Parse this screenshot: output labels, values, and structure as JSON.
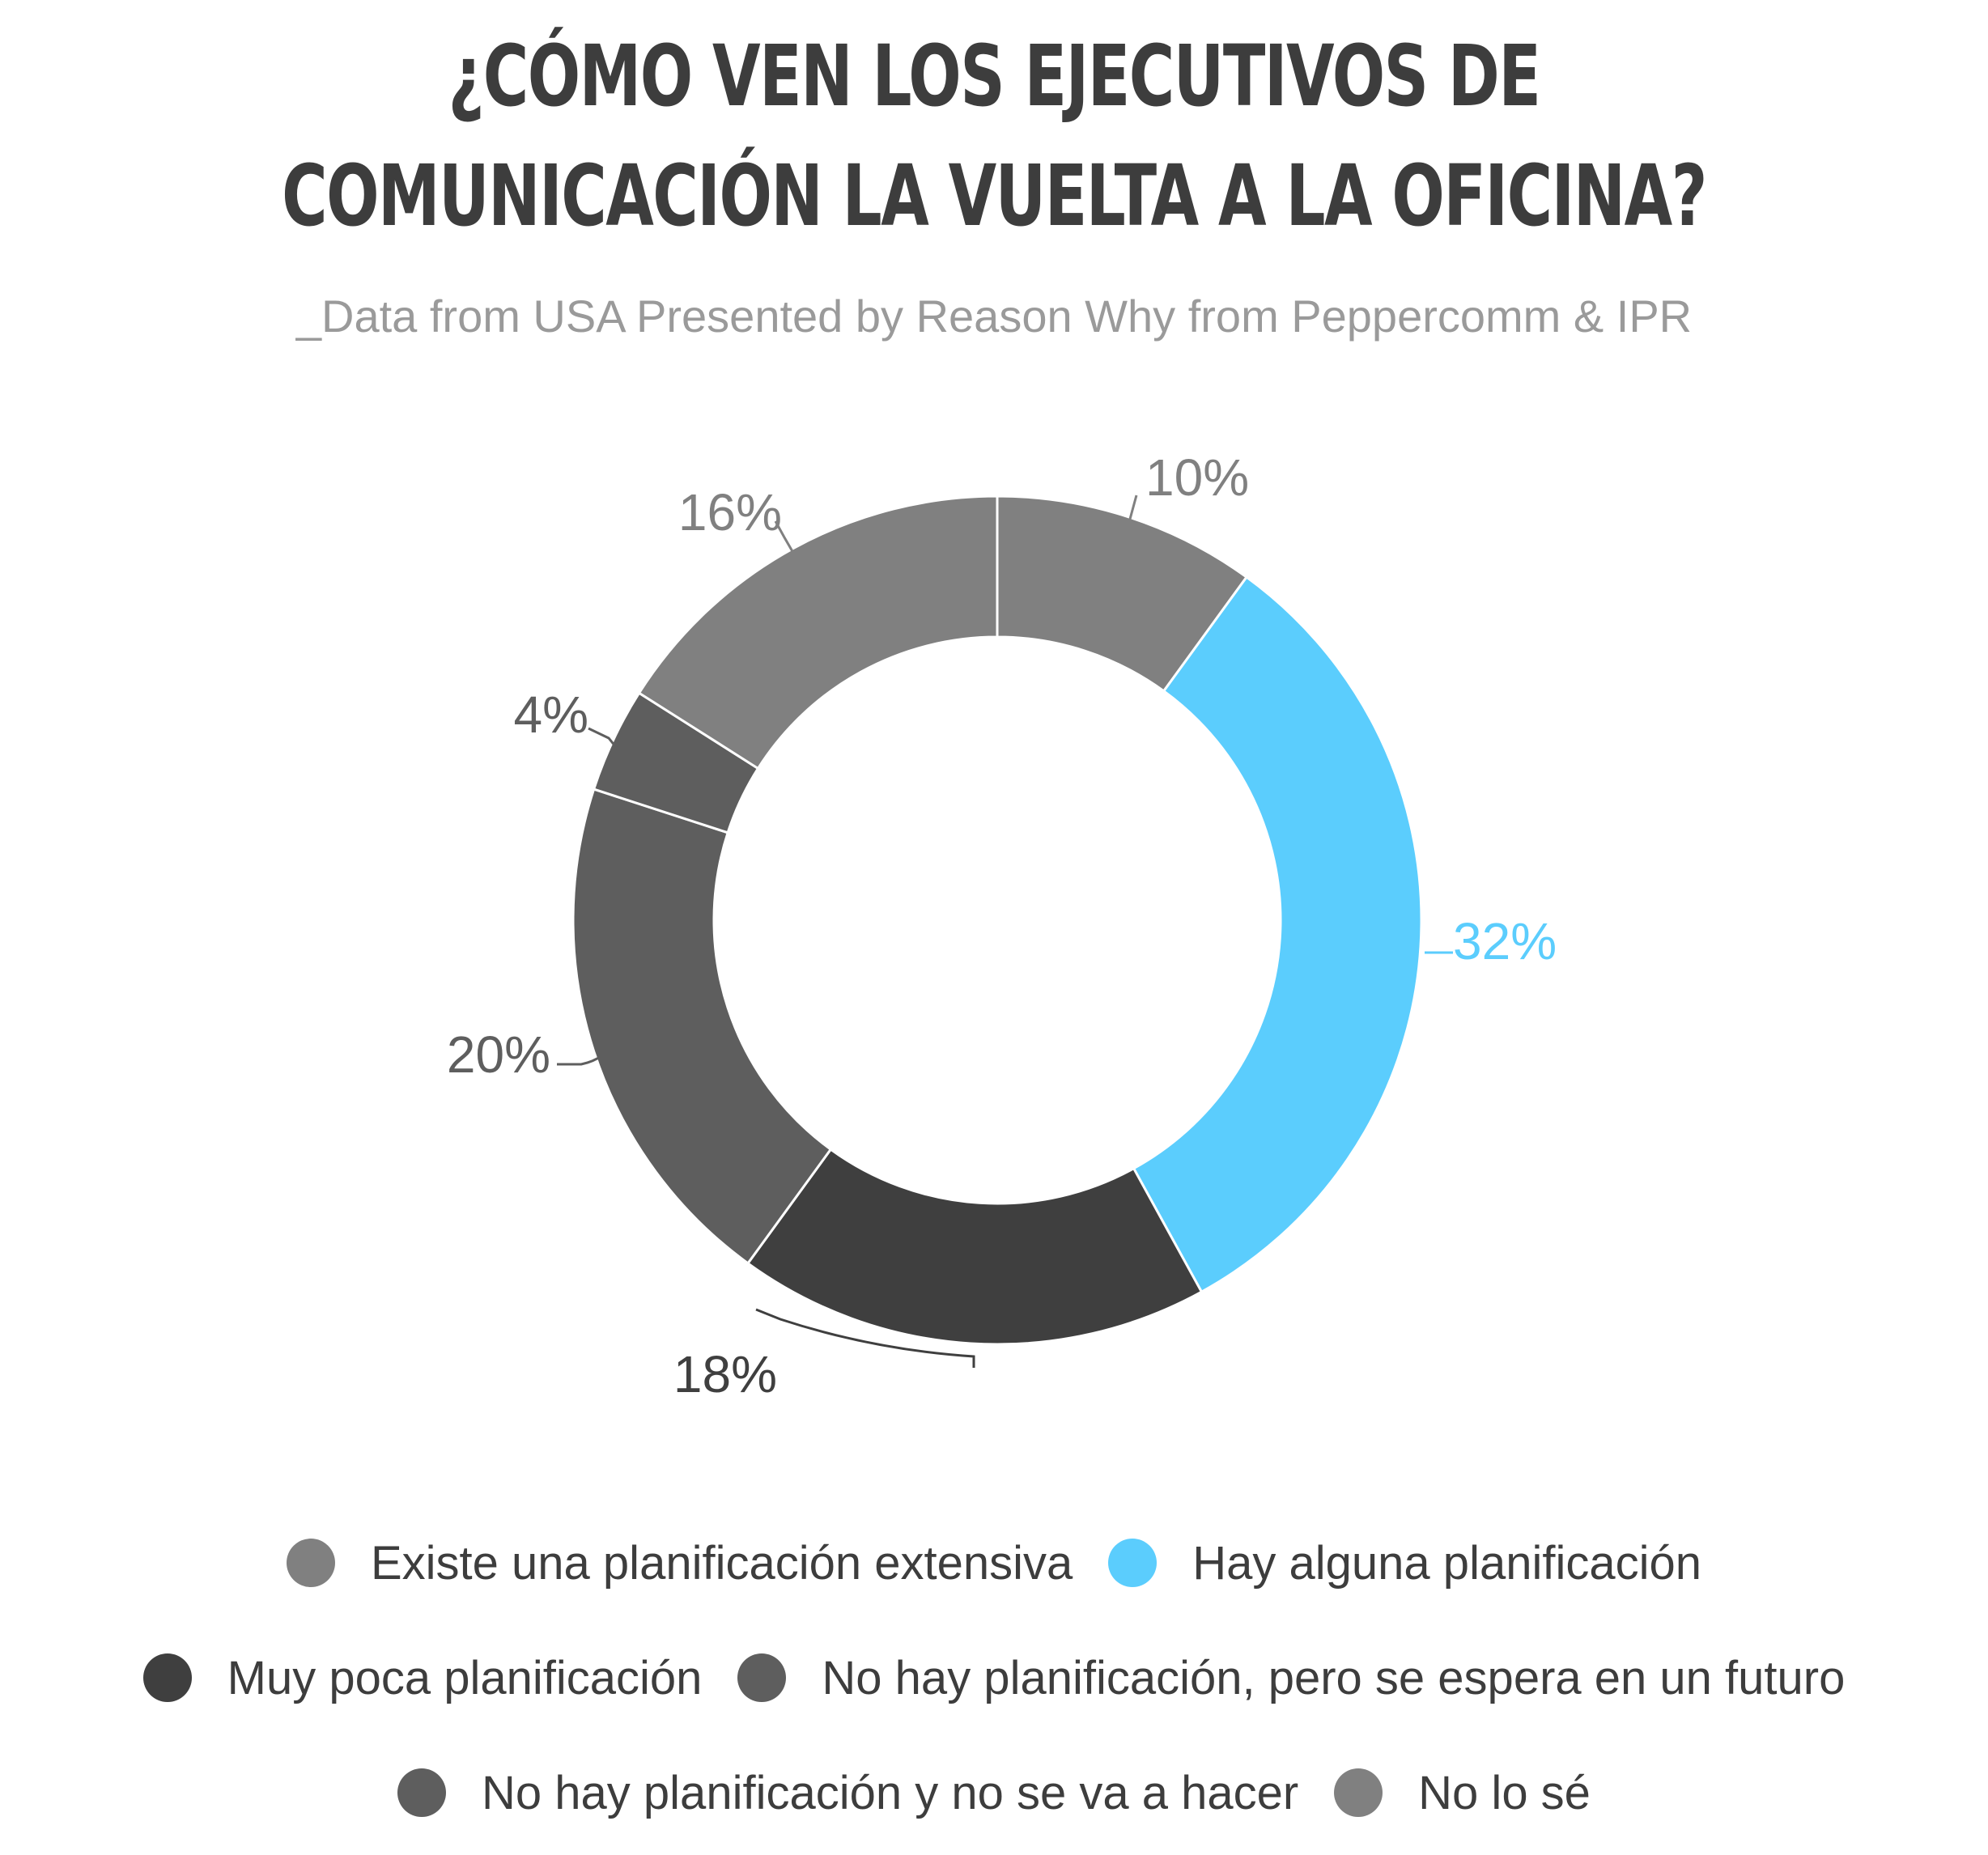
{
  "header": {
    "title_line1": "¿CÓMO VEN LOS EJECUTIVOS DE",
    "title_line2": "COMUNICACIÓN LA VUELTA A LA OFICINA?",
    "subtitle": "_Data from USA Presented by Reason Why from Peppercomm & IPR"
  },
  "chart_data": {
    "type": "pie",
    "variant": "donut",
    "legend_position": "bottom",
    "slices": [
      {
        "name": "Existe una planificación extensiva",
        "value": 10,
        "label": "10%",
        "color": "#808080",
        "label_color": "#808080"
      },
      {
        "name": "Hay alguna planificación",
        "value": 32,
        "label": "32%",
        "color": "#5bcdfd",
        "label_color": "#5bcdfd"
      },
      {
        "name": "Muy poca planificación",
        "value": 18,
        "label": "18%",
        "color": "#3f3f3f",
        "label_color": "#3f3f3f"
      },
      {
        "name": "No hay planificación, pero se espera en un futuro",
        "value": 20,
        "label": "20%",
        "color": "#5e5e5e",
        "label_color": "#5e5e5e"
      },
      {
        "name": "No hay planificación y no se va a hacer",
        "value": 4,
        "label": "4%",
        "color": "#5e5e5e",
        "label_color": "#5e5e5e"
      },
      {
        "name": "No lo sé",
        "value": 16,
        "label": "16%",
        "color": "#808080",
        "label_color": "#808080"
      }
    ]
  },
  "legend": {
    "rows": [
      [
        0,
        1
      ],
      [
        2,
        3
      ],
      [
        4,
        5
      ]
    ]
  }
}
